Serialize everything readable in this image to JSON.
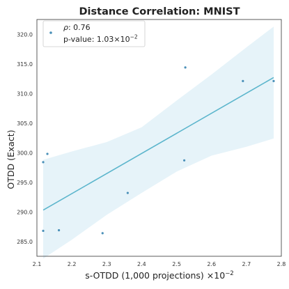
{
  "chart_data": {
    "type": "scatter",
    "title": "Distance Correlation: MNIST",
    "xlabel": "s-OTDD (1,000 projections)",
    "xlabel_exponent": "×10",
    "xlabel_exponent_power": "−2",
    "ylabel": "OTDD (Exact)",
    "xlim": [
      2.1,
      2.8
    ],
    "ylim": [
      282.5,
      322.5
    ],
    "x_ticks": [
      2.1,
      2.2,
      2.3,
      2.4,
      2.5,
      2.6,
      2.7,
      2.8
    ],
    "x_tick_labels": [
      "2.1",
      "2.2",
      "2.3",
      "2.4",
      "2.5",
      "2.6",
      "2.7",
      "2.8"
    ],
    "y_ticks": [
      285,
      290,
      295,
      300,
      305,
      310,
      315,
      320
    ],
    "y_tick_labels": [
      "285.0",
      "290.0",
      "295.0",
      "300.0",
      "305.0",
      "310.0",
      "315.0",
      "320.0"
    ],
    "grid": false,
    "legend_position": "top-left",
    "legend": {
      "rho_symbol": "ρ",
      "rho_text": ": 0.76",
      "pvalue_text": "p-value: 1.03×10",
      "pvalue_power": "−2"
    },
    "points": [
      {
        "x": 2.118,
        "y": 298.4
      },
      {
        "x": 2.13,
        "y": 299.8
      },
      {
        "x": 2.118,
        "y": 286.8
      },
      {
        "x": 2.163,
        "y": 286.9
      },
      {
        "x": 2.288,
        "y": 286.4
      },
      {
        "x": 2.36,
        "y": 293.2
      },
      {
        "x": 2.522,
        "y": 298.7
      },
      {
        "x": 2.525,
        "y": 314.4
      },
      {
        "x": 2.69,
        "y": 312.1
      },
      {
        "x": 2.778,
        "y": 312.1
      }
    ],
    "fit_line": {
      "x": [
        2.118,
        2.778
      ],
      "y": [
        290.3,
        312.7
      ]
    },
    "confidence_band": {
      "x": [
        2.118,
        2.2,
        2.3,
        2.4,
        2.5,
        2.6,
        2.7,
        2.778
      ],
      "upper": [
        298.8,
        300.2,
        301.8,
        304.3,
        308.8,
        313.2,
        317.8,
        321.3
      ],
      "lower": [
        282.1,
        285.3,
        289.5,
        293.2,
        296.8,
        299.5,
        301.0,
        302.4
      ]
    },
    "colors": {
      "line": "#5bb5cc",
      "band": "#e6f3f9",
      "points": "#4a90b8",
      "axes": "#333333"
    }
  }
}
